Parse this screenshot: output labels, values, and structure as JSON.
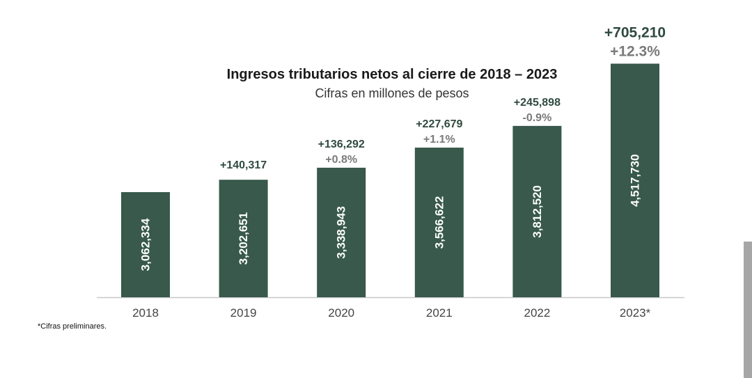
{
  "colors": {
    "bar": "#38594b",
    "increase_text": "#2f4a3f",
    "pct_text": "#7a7a7a",
    "axis": "#c8c8c8",
    "bar_value_text": "#ffffff"
  },
  "chart_data": {
    "type": "bar",
    "title": "Ingresos tributarios netos al cierre de 2018 – 2023",
    "subtitle": "Cifras en millones de pesos",
    "categories": [
      "2018",
      "2019",
      "2020",
      "2021",
      "2022",
      "2023*"
    ],
    "values": [
      3062334,
      3202651,
      3338943,
      3566622,
      3812520,
      4517730
    ],
    "value_labels": [
      "3,062,334",
      "3,202,651",
      "3,338,943",
      "3,566,622",
      "3,812,520",
      "4,517,730"
    ],
    "change_labels": [
      "",
      "+140,317",
      "+136,292",
      "+227,679",
      "+245,898",
      "+705,210"
    ],
    "pct_labels": [
      "",
      "",
      "+0.8%",
      "+1.1%",
      "-0.9%",
      "+12.3%"
    ],
    "footnote": "*Cifras preliminares."
  }
}
